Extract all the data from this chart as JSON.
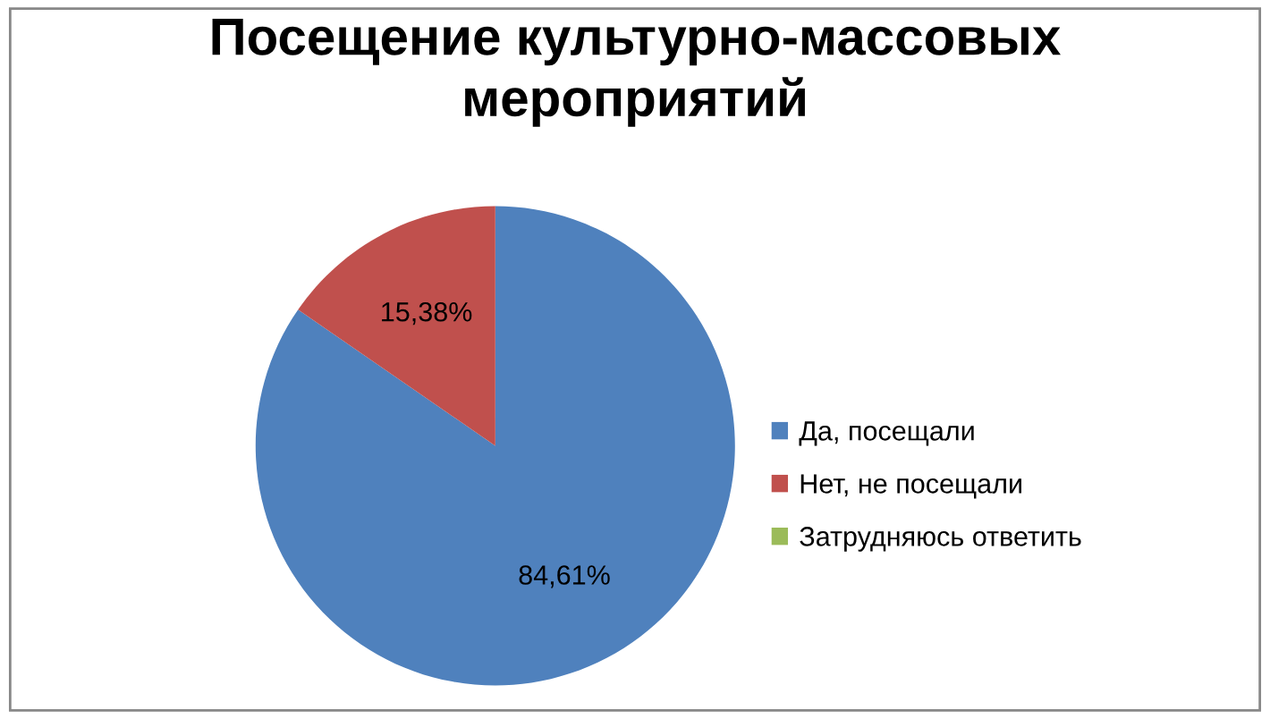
{
  "chart_data": {
    "type": "pie",
    "title": "Посещение культурно-массовых\nмероприятий",
    "categories": [
      "Да, посещали",
      "Нет, не посещали",
      "Затрудняюсь ответить"
    ],
    "values": [
      84.61,
      15.38,
      0
    ],
    "colors": [
      "#4f81bd",
      "#c0504d",
      "#9bbb59"
    ],
    "value_labels": [
      "84,61%",
      "15,38%",
      null
    ],
    "legend": "right"
  }
}
